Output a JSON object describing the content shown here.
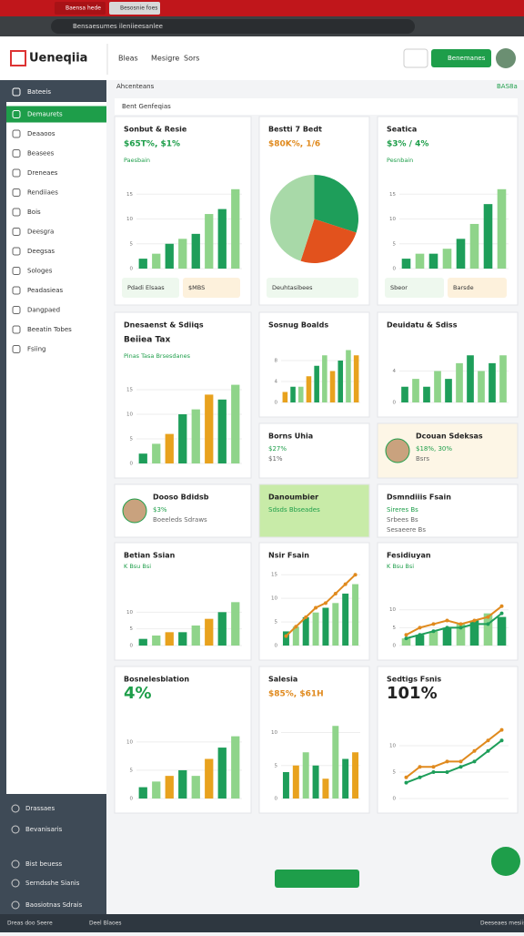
{
  "browser": {
    "tabs": [
      "Baensa hede",
      "Besosnie foes"
    ],
    "address": "Bensaesumes ileniieesanlee"
  },
  "header": {
    "logo": "Ueneqiia",
    "nav": [
      "Bleas",
      "Mesigre",
      "Sors"
    ],
    "button": "Benemanes"
  },
  "sidebar": {
    "items": [
      "Bateeis",
      "Demaurets",
      "Deaaoos",
      "Beasees",
      "Dreneaes",
      "Rendiiaes",
      "Bois",
      "Deesgra",
      "Deegsas",
      "Sologes",
      "Peadasieas",
      "Dangpaed",
      "Beeatin Tobes",
      "Fsiing"
    ],
    "bottom": [
      "Drassaes",
      "Bevanisaris",
      "Bist beuess",
      "Serndsshe Sianis",
      "Baosiotnas Sdrais"
    ]
  },
  "subheader": {
    "title": "Ahcenteans",
    "badge": "BAS8a",
    "panel": "Bent Genfeqias"
  },
  "cards": [
    {
      "title": "Sonbut & Resie",
      "stat": "$65T%, $1%",
      "stat_color": "#1e9e4a",
      "label": "Paesbain",
      "chart": {
        "type": "bar",
        "values": [
          2,
          3,
          5,
          6,
          7,
          11,
          12,
          16
        ],
        "colors": [
          "#1e9e5a",
          "#8fd48a"
        ],
        "ylim": [
          0,
          20
        ],
        "yticks": [
          0,
          5,
          10,
          15
        ]
      },
      "footer": [
        "Pdadi Elsaas",
        "$MBS"
      ]
    },
    {
      "title": "Bestti 7 Bedt",
      "stat": "$80K%, 1/6",
      "stat_color": "#e08a1e",
      "chart": {
        "type": "pie",
        "values": [
          30,
          25,
          45
        ],
        "colors": [
          "#1e9e5a",
          "#e2521d",
          "#a8d9a8"
        ]
      },
      "footer": [
        "Deuhtasibees"
      ]
    },
    {
      "title": "Seatica",
      "stat": "$3% / 4%",
      "stat_color": "#1e9e4a",
      "label": "Pesnbain",
      "chart": {
        "type": "bar",
        "values": [
          2,
          3,
          3,
          4,
          6,
          9,
          13,
          16
        ],
        "colors": [
          "#1e9e5a",
          "#8fd48a"
        ],
        "ylim": [
          0,
          20
        ],
        "yticks": [
          0,
          5,
          10,
          15
        ]
      },
      "footer": [
        "Sbeor",
        "Barsde"
      ]
    },
    {
      "title": "Dnesaenst & Sdiiqs",
      "stat": "Beiiea Tax",
      "stat_color": "#222222",
      "label": "Pinas Tasa Brsesdanes",
      "chart": {
        "type": "bar",
        "values": [
          2,
          4,
          6,
          10,
          11,
          14,
          13,
          16
        ],
        "colors": [
          "#1e9e5a",
          "#8fd48a",
          "#e8a21e"
        ],
        "ylim": [
          0,
          20
        ],
        "yticks": [
          0,
          5,
          10,
          15
        ]
      }
    },
    {
      "title": "Sosnug Boalds",
      "chart": {
        "type": "bar",
        "values": [
          2,
          3,
          3,
          5,
          7,
          9,
          6,
          8,
          10,
          9
        ],
        "colors": [
          "#e8a21e",
          "#1e9e5a",
          "#8fd48a"
        ],
        "ylim": [
          0,
          12
        ],
        "yticks": [
          0,
          4,
          8
        ]
      }
    },
    {
      "title": "Deuidatu & Sdiss",
      "chart": {
        "type": "bar",
        "values": [
          2,
          3,
          2,
          4,
          3,
          5,
          6,
          4,
          5,
          6
        ],
        "colors": [
          "#1e9e5a",
          "#8fd48a"
        ],
        "ylim": [
          0,
          8
        ],
        "yticks": [
          0,
          4
        ]
      }
    },
    {
      "title": "Borns Uhia",
      "lines": [
        "$27%",
        "$1%"
      ]
    },
    {
      "title": "Dcouan Sdeksas",
      "avatar": true,
      "lines": [
        "$18%, 30%",
        "Bsrs"
      ],
      "bg": "#fdf6e6"
    },
    {
      "title": "Dooso Bdidsb",
      "avatar": true,
      "lines": [
        "$3%",
        "Boeeleds Sdraws"
      ]
    },
    {
      "title": "Danoumbier",
      "lines": [
        "Sdsds Bbseades"
      ],
      "bg": "#c8eba8"
    },
    {
      "title": "Dsmndiiis Fsain",
      "lines": [
        "Sireres  Bs",
        "Srbees  Bs",
        "Sesaeere  Bs"
      ]
    },
    {
      "title": "Betian Ssian",
      "label": "K Bsu  Bsi",
      "chart": {
        "type": "bar",
        "values": [
          2,
          3,
          4,
          4,
          6,
          8,
          10,
          13
        ],
        "colors": [
          "#1e9e5a",
          "#8fd48a",
          "#e8a21e"
        ],
        "ylim": [
          0,
          15
        ],
        "yticks": [
          0,
          5,
          10
        ]
      }
    },
    {
      "title": "Nsir Fsain",
      "chart": {
        "type": "bar",
        "values": [
          3,
          4,
          6,
          7,
          8,
          9,
          11,
          13
        ],
        "colors": [
          "#1e9e5a",
          "#8fd48a"
        ],
        "line": [
          2,
          4,
          6,
          8,
          9,
          11,
          13,
          15
        ],
        "line_color": "#e08a1e",
        "ylim": [
          0,
          16
        ],
        "yticks": [
          0,
          5,
          10,
          15
        ]
      }
    },
    {
      "title": "Fesidiuyan",
      "label": "K Bsu  Bsi",
      "chart": {
        "type": "bar",
        "values": [
          2,
          3,
          4,
          5,
          6,
          7,
          9,
          8
        ],
        "colors": [
          "#8fd48a",
          "#1e9e5a"
        ],
        "line": [
          3,
          5,
          6,
          7,
          6,
          7,
          8,
          11
        ],
        "line_color": "#e08a1e",
        "line2": [
          2,
          3,
          4,
          5,
          5,
          6,
          6,
          9
        ],
        "line2_color": "#1e9e5a",
        "ylim": [
          0,
          14
        ],
        "yticks": [
          0,
          5,
          10
        ]
      }
    },
    {
      "title": "Bosnelesblation",
      "stat": "4%",
      "stat_color": "#1e9e4a",
      "chart": {
        "type": "bar",
        "values": [
          2,
          3,
          4,
          5,
          4,
          7,
          9,
          11
        ],
        "colors": [
          "#1e9e5a",
          "#8fd48a",
          "#e8a21e"
        ],
        "ylim": [
          0,
          14
        ],
        "yticks": [
          0,
          5,
          10
        ]
      }
    },
    {
      "title": "Salesia",
      "stat": "$85%, $61H",
      "stat_color": "#e08a1e",
      "chart": {
        "type": "bar",
        "values": [
          4,
          5,
          7,
          5,
          3,
          11,
          6,
          7
        ],
        "colors": [
          "#1e9e5a",
          "#e8a21e",
          "#8fd48a"
        ],
        "ylim": [
          0,
          12
        ],
        "yticks": [
          0,
          5,
          10
        ]
      }
    },
    {
      "title": "Sedtigs Fsnis",
      "stat": "101%",
      "stat_color": "#222222",
      "chart": {
        "type": "line",
        "values": [
          3,
          4,
          5,
          5,
          6,
          7,
          9,
          11
        ],
        "color": "#1e9e5a",
        "line": [
          4,
          6,
          6,
          7,
          7,
          9,
          11,
          13
        ],
        "line_color": "#e08a1e",
        "ylim": [
          0,
          15
        ],
        "yticks": [
          0,
          5,
          10
        ]
      }
    }
  ],
  "status": [
    "Dreas doo Seere",
    "Deel Blaoes",
    "Deeseaes mesiis"
  ]
}
